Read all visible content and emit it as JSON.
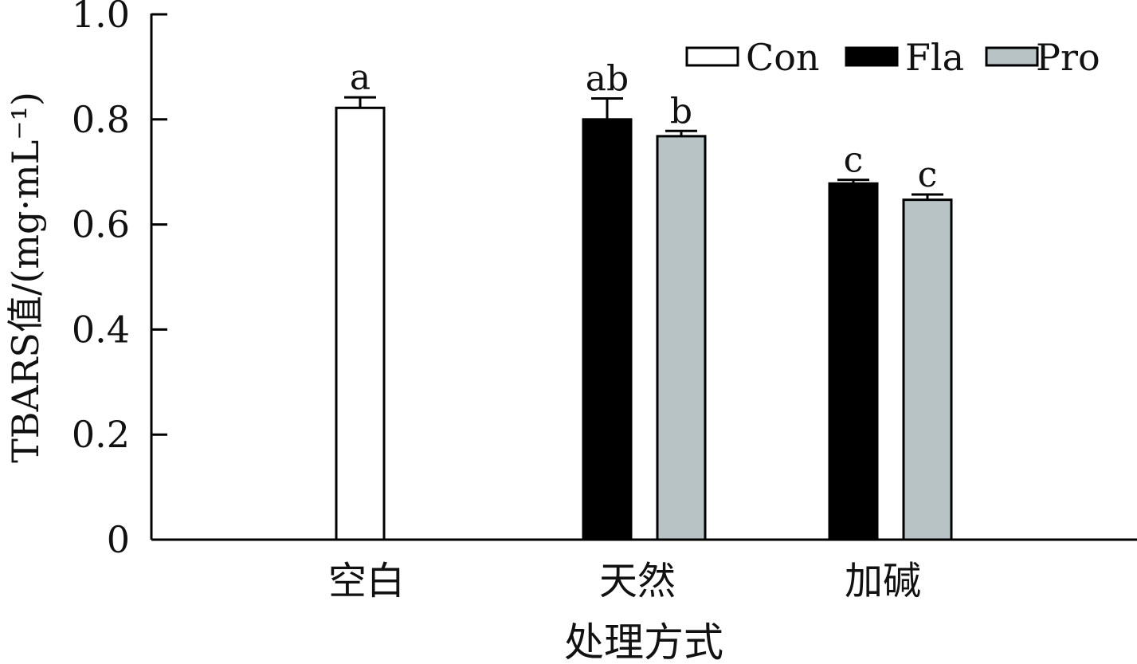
{
  "chart_data": {
    "type": "bar",
    "categories": [
      "空白",
      "天然",
      "加碱"
    ],
    "series": [
      {
        "name": "Con",
        "values": [
          0.822,
          null,
          null
        ],
        "errors": [
          0.02,
          null,
          null
        ],
        "letters": [
          "a",
          null,
          null
        ],
        "color": "#ffffff"
      },
      {
        "name": "Fla",
        "values": [
          null,
          0.8,
          0.678
        ],
        "errors": [
          null,
          0.04,
          0.007
        ],
        "letters": [
          null,
          "ab",
          "c"
        ],
        "color": "#000000"
      },
      {
        "name": "Pro",
        "values": [
          null,
          0.768,
          0.647
        ],
        "errors": [
          null,
          0.01,
          0.01
        ],
        "letters": [
          null,
          "b",
          "c"
        ],
        "color": "#b8c3c6"
      }
    ],
    "xlabel": "处理方式",
    "ylabel": "TBARS值/(mg·mL⁻¹)",
    "ylim": [
      0,
      1.0
    ],
    "yticks": [
      "0",
      "0.2",
      "0.4",
      "0.6",
      "0.8",
      "1.0"
    ],
    "legend_position": "top-right",
    "grid": false
  }
}
